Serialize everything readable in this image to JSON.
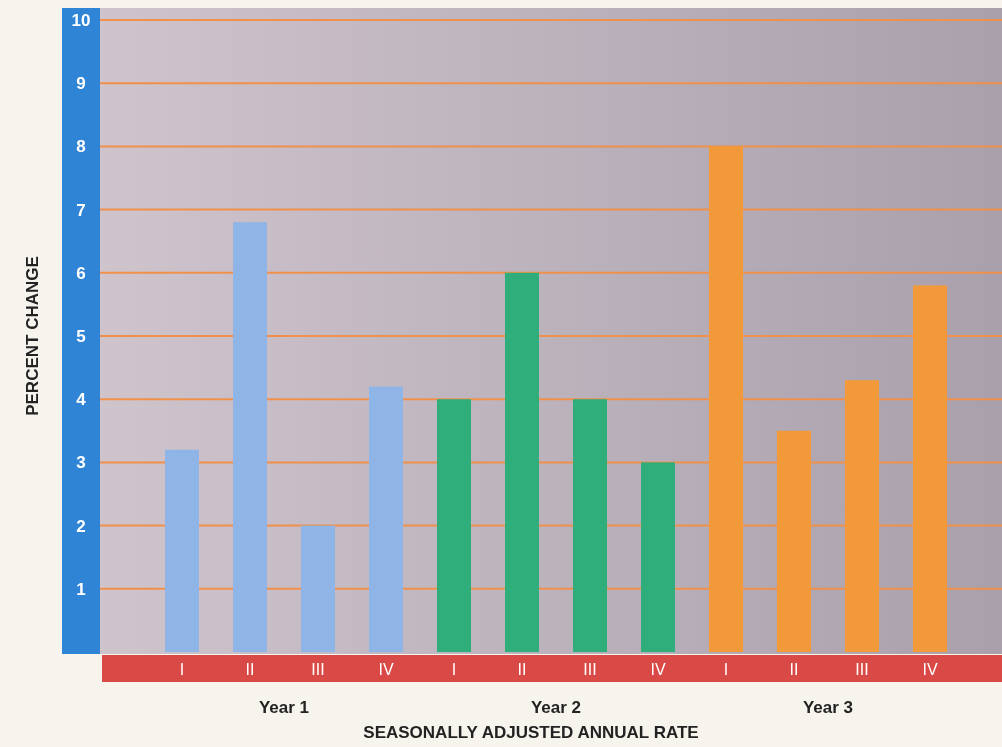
{
  "chart_data": {
    "type": "bar",
    "xlabel": "SEASONALLY ADJUSTED ANNUAL RATE",
    "ylabel": "PERCENT CHANGE",
    "categories": [
      "I",
      "II",
      "III",
      "IV",
      "I",
      "II",
      "III",
      "IV",
      "I",
      "II",
      "III",
      "IV"
    ],
    "series": [
      {
        "name": "Year 1",
        "color": "#8fb4e6",
        "values": [
          3.2,
          6.8,
          2.0,
          4.2,
          null,
          null,
          null,
          null,
          null,
          null,
          null,
          null
        ]
      },
      {
        "name": "Year 2",
        "color": "#2fae7c",
        "values": [
          null,
          null,
          null,
          null,
          4.0,
          6.0,
          4.0,
          3.0,
          null,
          null,
          null,
          null
        ]
      },
      {
        "name": "Year 3",
        "color": "#f29a3a",
        "values": [
          null,
          null,
          null,
          null,
          null,
          null,
          null,
          null,
          8.0,
          3.5,
          4.3,
          5.8
        ]
      }
    ],
    "ylim": [
      0,
      10
    ],
    "yticks": [
      1,
      2,
      3,
      4,
      5,
      6,
      7,
      8,
      9,
      10
    ],
    "grid": true,
    "legend": false
  }
}
